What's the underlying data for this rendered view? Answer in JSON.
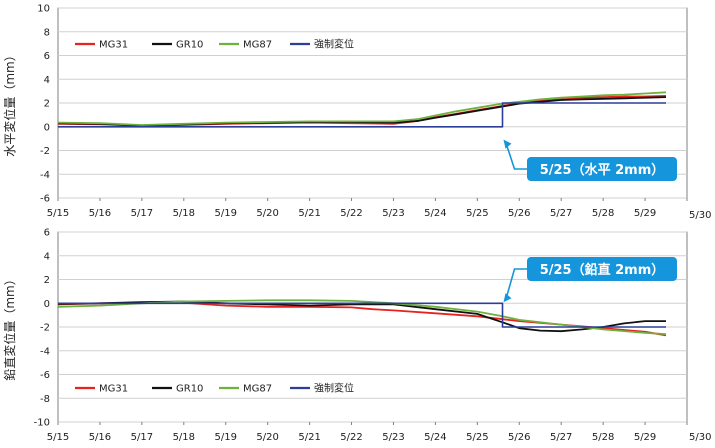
{
  "chart_data": [
    {
      "type": "line",
      "ylabel": "水平変位量（mm）",
      "ylim": [
        -6,
        10
      ],
      "yticks": [
        -6,
        -4,
        -2,
        0,
        2,
        4,
        6,
        8,
        10
      ],
      "xlim": [
        15,
        30
      ],
      "x_tick_labels": [
        "5/15",
        "5/16",
        "5/17",
        "5/18",
        "5/19",
        "5/20",
        "5/21",
        "5/22",
        "5/23",
        "5/24",
        "5/25",
        "5/26",
        "5/27",
        "5/28",
        "5/29",
        "5/30"
      ],
      "legend": [
        "MG31",
        "GR10",
        "MG87",
        "強制変位"
      ],
      "legend_position": "top-left",
      "grid": "horizontal",
      "annotation": {
        "text": "5/25（水平 2mm）",
        "target_x": 25.6,
        "target_y": -1
      },
      "series": [
        {
          "name": "MG31",
          "color": "#e8231f",
          "points": [
            [
              15,
              0.25
            ],
            [
              16,
              0.2
            ],
            [
              17,
              0.1
            ],
            [
              18,
              0.15
            ],
            [
              19,
              0.25
            ],
            [
              20,
              0.3
            ],
            [
              21,
              0.35
            ],
            [
              22,
              0.3
            ],
            [
              23,
              0.25
            ],
            [
              23.6,
              0.5
            ],
            [
              24,
              0.8
            ],
            [
              24.5,
              1.1
            ],
            [
              25,
              1.4
            ],
            [
              25.5,
              1.7
            ],
            [
              26,
              2.0
            ],
            [
              26.5,
              2.2
            ],
            [
              27,
              2.3
            ],
            [
              27.5,
              2.45
            ],
            [
              28,
              2.5
            ],
            [
              28.5,
              2.55
            ],
            [
              29,
              2.55
            ],
            [
              29.5,
              2.6
            ]
          ]
        },
        {
          "name": "GR10",
          "color": "#111111",
          "points": [
            [
              15,
              0.3
            ],
            [
              16,
              0.25
            ],
            [
              17,
              0.1
            ],
            [
              18,
              0.2
            ],
            [
              19,
              0.3
            ],
            [
              20,
              0.35
            ],
            [
              21,
              0.4
            ],
            [
              22,
              0.4
            ],
            [
              23,
              0.35
            ],
            [
              23.6,
              0.5
            ],
            [
              24,
              0.75
            ],
            [
              24.5,
              1.05
            ],
            [
              25,
              1.35
            ],
            [
              25.5,
              1.65
            ],
            [
              26,
              1.95
            ],
            [
              26.5,
              2.1
            ],
            [
              27,
              2.25
            ],
            [
              27.5,
              2.3
            ],
            [
              28,
              2.35
            ],
            [
              28.5,
              2.4
            ],
            [
              29,
              2.45
            ],
            [
              29.5,
              2.5
            ]
          ]
        },
        {
          "name": "MG87",
          "color": "#6fb13f",
          "points": [
            [
              15,
              0.35
            ],
            [
              16,
              0.3
            ],
            [
              17,
              0.15
            ],
            [
              18,
              0.25
            ],
            [
              19,
              0.35
            ],
            [
              20,
              0.4
            ],
            [
              21,
              0.45
            ],
            [
              22,
              0.45
            ],
            [
              23,
              0.45
            ],
            [
              23.6,
              0.65
            ],
            [
              24,
              0.95
            ],
            [
              24.5,
              1.3
            ],
            [
              25,
              1.6
            ],
            [
              25.5,
              1.9
            ],
            [
              26,
              2.1
            ],
            [
              26.5,
              2.3
            ],
            [
              27,
              2.45
            ],
            [
              27.5,
              2.55
            ],
            [
              28,
              2.65
            ],
            [
              28.5,
              2.7
            ],
            [
              29,
              2.8
            ],
            [
              29.5,
              2.9
            ]
          ]
        },
        {
          "name": "強制変位",
          "color": "#2b3f9a",
          "points": [
            [
              15,
              0
            ],
            [
              25.6,
              0
            ],
            [
              25.6,
              2
            ],
            [
              29.5,
              2
            ]
          ]
        }
      ]
    },
    {
      "type": "line",
      "ylabel": "鉛直変位量（mm）",
      "ylim": [
        -10,
        6
      ],
      "yticks": [
        -10,
        -8,
        -6,
        -4,
        -2,
        0,
        2,
        4,
        6
      ],
      "xlim": [
        15,
        30
      ],
      "x_tick_labels": [
        "5/15",
        "5/16",
        "5/17",
        "5/18",
        "5/19",
        "5/20",
        "5/21",
        "5/22",
        "5/23",
        "5/24",
        "5/25",
        "5/26",
        "5/27",
        "5/28",
        "5/29",
        "5/30"
      ],
      "legend": [
        "MG31",
        "GR10",
        "MG87",
        "強制変位"
      ],
      "legend_position": "bottom-left",
      "grid": "horizontal",
      "annotation": {
        "text": "5/25（鉛直 2mm）",
        "target_x": 25.6,
        "target_y": 0
      },
      "series": [
        {
          "name": "MG31",
          "color": "#e8231f",
          "points": [
            [
              15,
              -0.1
            ],
            [
              16,
              0
            ],
            [
              17,
              0.05
            ],
            [
              18,
              0.05
            ],
            [
              19,
              -0.2
            ],
            [
              20,
              -0.3
            ],
            [
              21,
              -0.3
            ],
            [
              22,
              -0.35
            ],
            [
              22.5,
              -0.5
            ],
            [
              23,
              -0.6
            ],
            [
              24,
              -0.85
            ],
            [
              25,
              -1.1
            ],
            [
              25.5,
              -1.3
            ],
            [
              26,
              -1.5
            ],
            [
              27,
              -1.8
            ],
            [
              28,
              -2.1
            ],
            [
              29,
              -2.4
            ],
            [
              29.5,
              -2.7
            ]
          ]
        },
        {
          "name": "GR10",
          "color": "#111111",
          "points": [
            [
              15,
              -0.05
            ],
            [
              16,
              0
            ],
            [
              17,
              0.1
            ],
            [
              18,
              0.15
            ],
            [
              19,
              0
            ],
            [
              20,
              -0.1
            ],
            [
              21,
              -0.2
            ],
            [
              22,
              -0.1
            ],
            [
              23,
              -0.1
            ],
            [
              24,
              -0.5
            ],
            [
              25,
              -0.9
            ],
            [
              25.6,
              -1.6
            ],
            [
              26,
              -2.1
            ],
            [
              26.5,
              -2.3
            ],
            [
              27,
              -2.35
            ],
            [
              27.5,
              -2.2
            ],
            [
              28,
              -2.0
            ],
            [
              28.5,
              -1.7
            ],
            [
              29,
              -1.5
            ],
            [
              29.5,
              -1.5
            ]
          ]
        },
        {
          "name": "MG87",
          "color": "#6fb13f",
          "points": [
            [
              15,
              -0.3
            ],
            [
              16,
              -0.2
            ],
            [
              17,
              0
            ],
            [
              18,
              0.15
            ],
            [
              19,
              0.2
            ],
            [
              20,
              0.25
            ],
            [
              21,
              0.25
            ],
            [
              22,
              0.2
            ],
            [
              23,
              0
            ],
            [
              24,
              -0.3
            ],
            [
              25,
              -0.7
            ],
            [
              25.6,
              -1.1
            ],
            [
              26,
              -1.4
            ],
            [
              27,
              -1.8
            ],
            [
              28,
              -2.2
            ],
            [
              29,
              -2.5
            ],
            [
              29.5,
              -2.6
            ]
          ]
        },
        {
          "name": "強制変位",
          "color": "#2b3f9a",
          "points": [
            [
              15,
              0
            ],
            [
              25.6,
              0
            ],
            [
              25.6,
              -2
            ],
            [
              29.5,
              -2
            ]
          ]
        }
      ]
    }
  ]
}
